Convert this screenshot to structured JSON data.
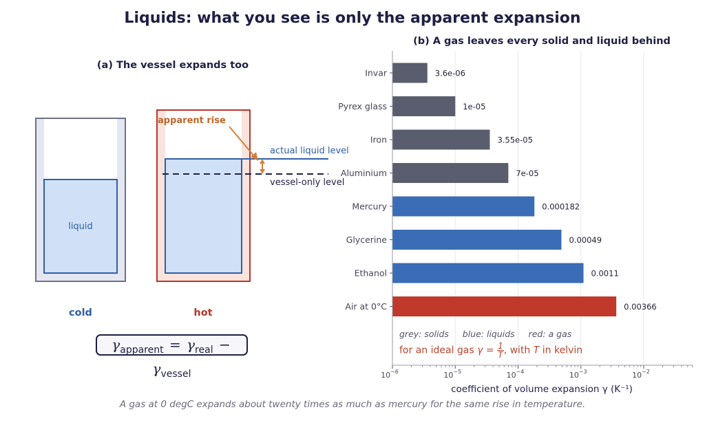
{
  "title": "Liquids: what you see is only the apparent expansion",
  "caption": "A gas at 0 degC expands about twenty times as much as mercury for the same rise in temperature.",
  "panel_a": {
    "title": "(a) The vessel expands too",
    "liquid_label": "liquid",
    "cold_label": "cold",
    "hot_label": "hot",
    "apparent_rise_label": "apparent rise",
    "actual_level_label": "actual liquid level",
    "vessel_level_label": "vessel-only level",
    "formula": {
      "g1": "γ",
      "s1": "apparent",
      "eq": "=",
      "g2": "γ",
      "s2": "real",
      "minus": "−",
      "g3": "γ",
      "s3": "vessel"
    },
    "colors": {
      "cold": "#2f5fa5",
      "hot": "#b8352b",
      "apparent": "#d67f3a",
      "liquid_fill": "#d0e1f7"
    }
  },
  "panel_b": {
    "legend_note": "grey: solids     blue: liquids     red: a gas",
    "gas_note": {
      "prefix": "for an ideal gas ",
      "gamma": "γ",
      "eq": " = ",
      "num": "1",
      "den": "T",
      "suffix1": ", with ",
      "t": "T",
      "suffix2": " in kelvin"
    },
    "colors": {
      "solid": "#5a5d6e",
      "liquid": "#3a6db5",
      "gas": "#c0392b"
    }
  },
  "chart_data": {
    "type": "bar",
    "orientation": "horizontal",
    "title": "(b) A gas leaves every solid and liquid behind",
    "xlabel": "coefficient of volume expansion γ  (K⁻¹)",
    "xscale": "log",
    "xlim": [
      1e-06,
      0.06
    ],
    "xticks": [
      {
        "value": 1e-06,
        "base": "10",
        "exp": "−6"
      },
      {
        "value": 1e-05,
        "base": "10",
        "exp": "−5"
      },
      {
        "value": 0.0001,
        "base": "10",
        "exp": "−4"
      },
      {
        "value": 0.001,
        "base": "10",
        "exp": "−3"
      },
      {
        "value": 0.01,
        "base": "10",
        "exp": "−2"
      }
    ],
    "grid": "vertical",
    "categories": [
      "Invar",
      "Pyrex glass",
      "Iron",
      "Aluminium",
      "Mercury",
      "Glycerine",
      "Ethanol",
      "Air at 0°C"
    ],
    "values": [
      3.6e-06,
      1e-05,
      3.55e-05,
      7e-05,
      0.000182,
      0.00049,
      0.0011,
      0.00366
    ],
    "value_labels": [
      "3.6e-06",
      "1e-05",
      "3.55e-05",
      "7e-05",
      "0.000182",
      "0.00049",
      "0.0011",
      "0.00366"
    ],
    "kinds": [
      "solid",
      "solid",
      "solid",
      "solid",
      "liquid",
      "liquid",
      "liquid",
      "gas"
    ]
  }
}
